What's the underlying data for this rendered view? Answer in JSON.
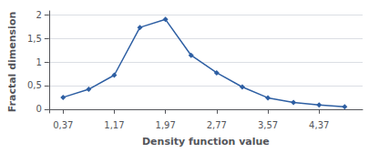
{
  "chart_data": {
    "type": "line",
    "x": [
      0.37,
      0.77,
      1.17,
      1.57,
      1.97,
      2.37,
      2.77,
      3.17,
      3.57,
      3.97,
      4.37,
      4.77
    ],
    "values": [
      0.25,
      0.42,
      0.72,
      1.73,
      1.9,
      1.14,
      0.77,
      0.47,
      0.24,
      0.14,
      0.09,
      0.05
    ],
    "color": "#2E5FA3",
    "marker": "diamond",
    "xlabel": "Density function value",
    "ylabel": "Fractal dimension",
    "xlim": [
      0.15,
      5.05
    ],
    "ylim": [
      -0.08,
      2.08
    ],
    "xticks": [
      {
        "value": 0.37,
        "label": "0,37"
      },
      {
        "value": 1.17,
        "label": "1,17"
      },
      {
        "value": 1.97,
        "label": "1,97"
      },
      {
        "value": 2.77,
        "label": "2,77"
      },
      {
        "value": 3.57,
        "label": "3,57"
      },
      {
        "value": 4.37,
        "label": "4,37"
      }
    ],
    "yticks": [
      0,
      {
        "value": 0.5,
        "label": "0,5"
      },
      1,
      {
        "value": 1.5,
        "label": "1,5"
      },
      2
    ],
    "grid": true
  }
}
